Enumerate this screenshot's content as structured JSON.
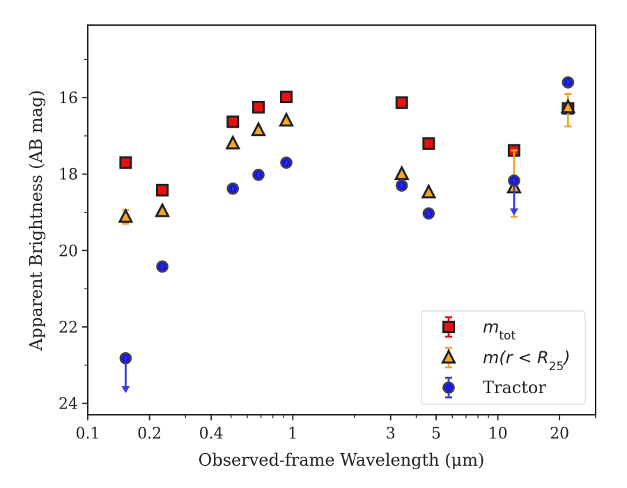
{
  "chart_data": {
    "type": "scatter",
    "xlabel": "Observed-frame Wavelength (μm)",
    "ylabel": "Apparent Brightness (AB mag)",
    "xscale": "log",
    "xlim": [
      0.1,
      30
    ],
    "ylim": [
      24.3,
      14.1
    ],
    "y_inverted": true,
    "x_ticks": [
      {
        "value": 0.1,
        "label": "0.1"
      },
      {
        "value": 0.2,
        "label": "0.2"
      },
      {
        "value": 0.4,
        "label": "0.4"
      },
      {
        "value": 1,
        "label": "1"
      },
      {
        "value": 3,
        "label": "3"
      },
      {
        "value": 5,
        "label": "5"
      },
      {
        "value": 10,
        "label": "10"
      },
      {
        "value": 20,
        "label": "20"
      }
    ],
    "y_ticks": [
      {
        "value": 16,
        "label": "16"
      },
      {
        "value": 18,
        "label": "18"
      },
      {
        "value": 20,
        "label": "20"
      },
      {
        "value": 22,
        "label": "22"
      },
      {
        "value": 24,
        "label": "24"
      }
    ],
    "legend_position": "bottom-right",
    "grid": false,
    "series": [
      {
        "name": "m_tot",
        "legend_label": {
          "base": "m",
          "sub": "tot",
          "suffix": ""
        },
        "marker": "square",
        "color": "#e8110f",
        "error_color": "#e8110f",
        "points": [
          {
            "x": 0.153,
            "y": 17.7
          },
          {
            "x": 0.231,
            "y": 18.42
          },
          {
            "x": 0.51,
            "y": 16.63
          },
          {
            "x": 0.68,
            "y": 16.25
          },
          {
            "x": 0.93,
            "y": 15.98
          },
          {
            "x": 3.4,
            "y": 16.13
          },
          {
            "x": 4.6,
            "y": 17.2
          },
          {
            "x": 12.0,
            "y": 17.38,
            "err": [
              0.0,
              0.0
            ]
          },
          {
            "x": 22.0,
            "y": 16.28
          }
        ]
      },
      {
        "name": "m(r < R_25)",
        "legend_label": {
          "base": "m(r < R",
          "sub": "25",
          "suffix": ")"
        },
        "marker": "triangle",
        "color": "#f5a623",
        "error_color": "#f5a623",
        "points": [
          {
            "x": 0.153,
            "y": 19.12,
            "err": [
              0.18,
              0.18
            ]
          },
          {
            "x": 0.231,
            "y": 18.97
          },
          {
            "x": 0.51,
            "y": 17.2
          },
          {
            "x": 0.68,
            "y": 16.85
          },
          {
            "x": 0.93,
            "y": 16.6
          },
          {
            "x": 3.4,
            "y": 18.0
          },
          {
            "x": 4.6,
            "y": 18.48
          },
          {
            "x": 12.0,
            "y": 18.35,
            "err": [
              0.97,
              0.77
            ]
          },
          {
            "x": 22.0,
            "y": 16.25,
            "err": [
              0.35,
              0.5
            ]
          }
        ]
      },
      {
        "name": "Tractor",
        "legend_label": {
          "base": "Tractor",
          "sub": "",
          "suffix": ""
        },
        "marker": "circle",
        "color": "#1717e6",
        "error_color": "#3a3ae0",
        "points": [
          {
            "x": 0.153,
            "y": 22.82,
            "upper_limit": true
          },
          {
            "x": 0.231,
            "y": 20.42
          },
          {
            "x": 0.51,
            "y": 18.38
          },
          {
            "x": 0.68,
            "y": 18.02
          },
          {
            "x": 0.93,
            "y": 17.7
          },
          {
            "x": 3.4,
            "y": 18.3
          },
          {
            "x": 4.6,
            "y": 19.03
          },
          {
            "x": 12.0,
            "y": 18.17,
            "upper_limit": true
          },
          {
            "x": 22.0,
            "y": 15.6
          }
        ]
      }
    ]
  }
}
